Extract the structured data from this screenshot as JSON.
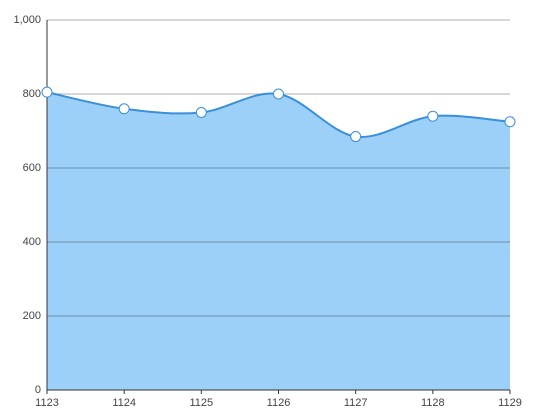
{
  "chart_data": {
    "type": "area",
    "categories": [
      "1123",
      "1124",
      "1125",
      "1126",
      "1127",
      "1128",
      "1129"
    ],
    "values": [
      805,
      760,
      750,
      800,
      685,
      740,
      725
    ],
    "color": "#3a8fd9",
    "fill_color": "#9dd0f8",
    "ylim": [
      0,
      1000
    ],
    "yticks": [
      0,
      200,
      400,
      600,
      800,
      {
        "value": 1000,
        "label": "1,000"
      }
    ],
    "grid": true,
    "smooth": true
  }
}
